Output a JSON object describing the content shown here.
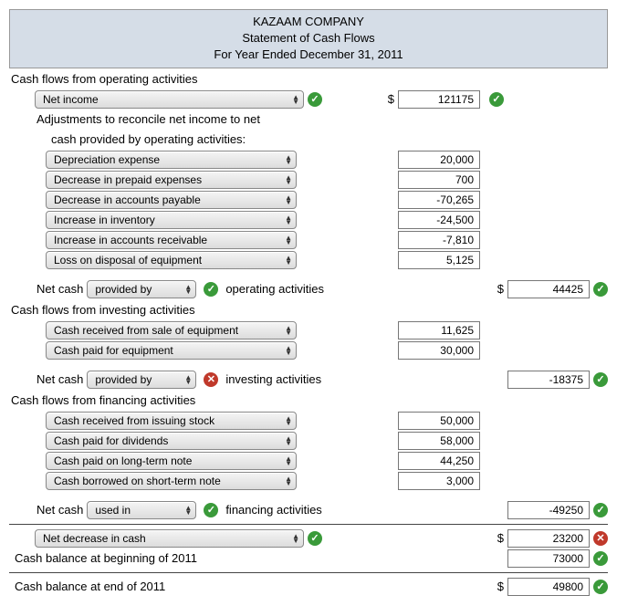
{
  "header": {
    "company": "KAZAAM COMPANY",
    "title": "Statement of Cash Flows",
    "period": "For Year Ended December 31, 2011"
  },
  "operating": {
    "title": "Cash flows from operating activities",
    "netIncomeLabel": "Net income",
    "netIncomeValue": "121175",
    "adjustmentsLine1": "Adjustments to reconcile net income to net",
    "adjustmentsLine2": "cash provided by operating activities:",
    "items": [
      {
        "label": "Depreciation expense",
        "value": "20,000"
      },
      {
        "label": "Decrease in prepaid expenses",
        "value": "700"
      },
      {
        "label": "Decrease in accounts payable",
        "value": "-70,265"
      },
      {
        "label": "Increase in inventory",
        "value": "-24,500"
      },
      {
        "label": "Increase in accounts receivable",
        "value": "-7,810"
      },
      {
        "label": "Loss on disposal of equipment",
        "value": "5,125"
      }
    ],
    "netCashPrefix": "Net cash",
    "netCashSelection": "provided by",
    "netCashSuffix": "operating activities",
    "netCashValue": "44425"
  },
  "investing": {
    "title": "Cash flows from investing activities",
    "items": [
      {
        "label": "Cash received from sale of equipment",
        "value": "11,625"
      },
      {
        "label": "Cash paid for equipment",
        "value": "30,000"
      }
    ],
    "netCashPrefix": "Net cash",
    "netCashSelection": "provided by",
    "netCashSuffix": "investing activities",
    "netCashValue": "-18375"
  },
  "financing": {
    "title": "Cash flows from financing activities",
    "items": [
      {
        "label": "Cash received from issuing stock",
        "value": "50,000"
      },
      {
        "label": "Cash paid for dividends",
        "value": "58,000"
      },
      {
        "label": "Cash paid on long-term note",
        "value": "44,250"
      },
      {
        "label": "Cash borrowed on short-term note",
        "value": "3,000"
      }
    ],
    "netCashPrefix": "Net cash",
    "netCashSelection": "used in",
    "netCashSuffix": "financing activities",
    "netCashValue": "-49250"
  },
  "summary": {
    "netChangeLabel": "Net decrease in cash",
    "netChangeValue": "23200",
    "beginLabel": "Cash balance at beginning of 2011",
    "beginValue": "73000",
    "endLabel": "Cash balance at end of 2011",
    "endValue": "49800"
  }
}
